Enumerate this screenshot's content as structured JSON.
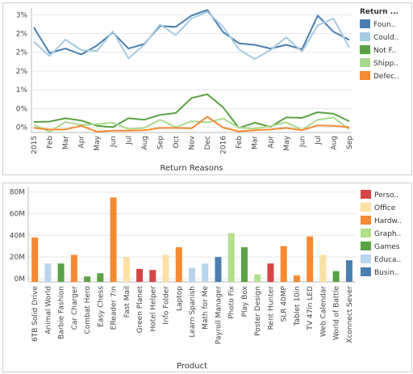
{
  "chart_data": [
    {
      "type": "line",
      "xlabel": "Return Reasons",
      "ylabel": "",
      "x_ticks": [
        "2015",
        "Feb",
        "Mar",
        "Apr",
        "May",
        "Jun",
        "Jul",
        "Aug",
        "Sep",
        "Oct",
        "Nov",
        "Dec",
        "2016",
        "Feb",
        "Mar",
        "Apr",
        "May",
        "Jun",
        "Jul",
        "Aug",
        "Sep"
      ],
      "y_ticks": [
        "0%",
        "0%",
        "1%",
        "2%",
        "2%",
        "2%",
        "3%"
      ],
      "ylim": [
        -0.22,
        3.1
      ],
      "grid": true,
      "legend": {
        "title": "Return ...",
        "placement": "right"
      },
      "series": [
        {
          "name": "Foun..",
          "color": "#4a7fb0",
          "values": [
            2.58,
            1.9,
            2.02,
            1.86,
            2.1,
            2.45,
            2.02,
            2.14,
            2.62,
            2.6,
            2.9,
            3.05,
            2.46,
            2.16,
            2.12,
            2.02,
            2.12,
            2.0,
            2.9,
            2.47,
            2.25
          ]
        },
        {
          "name": "Could..",
          "color": "#a6cbe4",
          "values": [
            2.2,
            1.82,
            2.26,
            1.98,
            1.95,
            2.48,
            1.76,
            2.12,
            2.66,
            2.38,
            2.82,
            3.0,
            2.6,
            2.0,
            1.74,
            1.98,
            2.32,
            1.94,
            2.64,
            2.82,
            2.05
          ]
        },
        {
          "name": "Not F..",
          "color": "#5aa245",
          "values": [
            0.06,
            0.07,
            0.16,
            0.1,
            -0.04,
            -0.08,
            0.16,
            0.12,
            0.25,
            0.3,
            0.7,
            0.8,
            0.45,
            -0.1,
            0.04,
            -0.07,
            0.18,
            0.17,
            0.32,
            0.28,
            0.08
          ]
        },
        {
          "name": "Shipp..",
          "color": "#a9d98c",
          "values": [
            -0.02,
            -0.2,
            0.06,
            -0.02,
            0.0,
            0.04,
            -0.13,
            -0.1,
            0.12,
            -0.08,
            0.08,
            0.05,
            0.15,
            -0.09,
            -0.12,
            -0.05,
            0.05,
            -0.15,
            0.12,
            0.18,
            -0.14
          ]
        },
        {
          "name": "Defec..",
          "color": "#f58a33",
          "values": [
            -0.1,
            -0.14,
            -0.14,
            -0.04,
            -0.2,
            -0.17,
            -0.17,
            -0.16,
            -0.1,
            -0.1,
            -0.11,
            0.2,
            -0.09,
            -0.19,
            -0.16,
            -0.14,
            -0.1,
            -0.16,
            -0.03,
            -0.04,
            -0.08
          ]
        }
      ]
    },
    {
      "type": "bar",
      "xlabel": "Product",
      "ylabel": "",
      "y_ticks": [
        "0M",
        "20M",
        "40M",
        "60M",
        "80M"
      ],
      "ylim": [
        -3,
        85
      ],
      "grid": true,
      "legend": {
        "placement": "right",
        "entries": [
          {
            "name": "Perso..",
            "color": "#d64545"
          },
          {
            "name": "Office",
            "color": "#fde0a5"
          },
          {
            "name": "Hardw..",
            "color": "#f58a33"
          },
          {
            "name": "Graph..",
            "color": "#b2df8a"
          },
          {
            "name": "Games",
            "color": "#5aa245"
          },
          {
            "name": "Educa..",
            "color": "#b8d6ee"
          },
          {
            "name": "Busin..",
            "color": "#4a7fb0"
          }
        ]
      },
      "categories": [
        "6TB Solid Drive",
        "Animal World",
        "Barbie Fashion",
        "Car Charger",
        "Combat Hero",
        "Easy Chess",
        "EReader 7in",
        "Fast Mail",
        "Green Planet",
        "Hotel Helper",
        "Info Folder",
        "Laptop",
        "Learn Spanish",
        "Math for Me",
        "Payroll Manager",
        "Photo Fix",
        "Play Box",
        "Poster Design",
        "Rent Hunter",
        "SLR 40MP",
        "Tablet 10in",
        "TV 47in LED",
        "Web Calendar",
        "World of Battle",
        "Xconnect Sever"
      ],
      "values": [
        38,
        14,
        14,
        22,
        2,
        5,
        75,
        20,
        9,
        8,
        22,
        29,
        10,
        14,
        20,
        42,
        29,
        4,
        14,
        30,
        3,
        39,
        22,
        7,
        17
      ],
      "groups": [
        "Hardw..",
        "Educa..",
        "Games",
        "Hardw..",
        "Games",
        "Games",
        "Hardw..",
        "Office",
        "Perso..",
        "Perso..",
        "Office",
        "Hardw..",
        "Educa..",
        "Educa..",
        "Busin..",
        "Graph..",
        "Games",
        "Graph..",
        "Perso..",
        "Hardw..",
        "Hardw..",
        "Hardw..",
        "Office",
        "Games",
        "Busin.."
      ]
    }
  ]
}
